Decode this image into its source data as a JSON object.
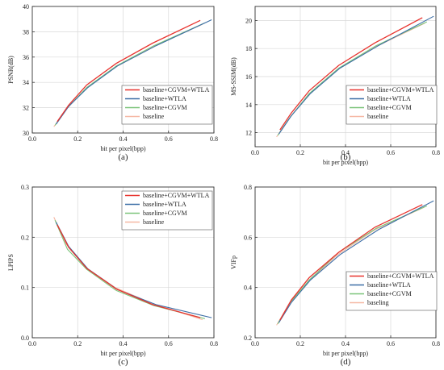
{
  "figure": {
    "colors": {
      "wtla": "#e8332e",
      "wtla_only": "#3c6ea6",
      "cgvm": "#7cc47a",
      "base": "#f6b8a4"
    }
  },
  "chart_data": [
    {
      "type": "line",
      "caption": "(a)",
      "xlabel": "bit per pixel(bpp)",
      "ylabel": "PSNR(dB)",
      "xlim": [
        0,
        0.8
      ],
      "ylim": [
        30,
        40
      ],
      "xticks": [
        "0.0",
        "0.2",
        "0.4",
        "0.6",
        "0.8"
      ],
      "yticks": [
        "30",
        "32",
        "34",
        "36",
        "38",
        "40"
      ],
      "grid": true,
      "legend_position": "bottom-right",
      "series": [
        {
          "name": "baseline+CGVM+WTLA",
          "color": "#e8332e",
          "x": [
            0.11,
            0.16,
            0.24,
            0.37,
            0.53,
            0.74
          ],
          "y": [
            30.9,
            32.2,
            33.8,
            35.5,
            37.1,
            38.9
          ]
        },
        {
          "name": "baseline+WTLA",
          "color": "#3c6ea6",
          "x": [
            0.105,
            0.16,
            0.245,
            0.375,
            0.545,
            0.79
          ],
          "y": [
            30.7,
            32.1,
            33.6,
            35.3,
            36.9,
            38.95
          ]
        },
        {
          "name": "baseline+CGVM",
          "color": "#7cc47a",
          "x": [
            0.1,
            0.155,
            0.24,
            0.37,
            0.535,
            0.76
          ],
          "y": [
            30.6,
            32.0,
            33.6,
            35.3,
            36.9,
            38.7
          ]
        },
        {
          "name": "baseline",
          "color": "#f6b8a4",
          "x": [
            0.095,
            0.15,
            0.235,
            0.365,
            0.53,
            0.75
          ],
          "y": [
            30.5,
            31.9,
            33.5,
            35.2,
            36.8,
            38.6
          ]
        }
      ]
    },
    {
      "type": "line",
      "caption": "(b)",
      "xlabel": "bit per pixel(bpp)",
      "ylabel": "MS-SSIM(dB)",
      "xlim": [
        0,
        0.8
      ],
      "ylim": [
        11,
        21
      ],
      "xticks": [
        "0.0",
        "0.2",
        "0.4",
        "0.6",
        "0.8"
      ],
      "yticks": [
        "12",
        "14",
        "16",
        "18",
        "20"
      ],
      "grid": true,
      "legend_position": "bottom-right",
      "series": [
        {
          "name": "baseline+CGVM+WTLA",
          "color": "#e8332e",
          "x": [
            0.11,
            0.16,
            0.24,
            0.37,
            0.53,
            0.74
          ],
          "y": [
            12.2,
            13.4,
            15.0,
            16.8,
            18.4,
            20.2
          ]
        },
        {
          "name": "baseline+WTLA",
          "color": "#3c6ea6",
          "x": [
            0.105,
            0.16,
            0.245,
            0.375,
            0.545,
            0.79
          ],
          "y": [
            11.9,
            13.2,
            14.8,
            16.6,
            18.2,
            20.3
          ]
        },
        {
          "name": "baseline+CGVM",
          "color": "#7cc47a",
          "x": [
            0.1,
            0.155,
            0.24,
            0.37,
            0.535,
            0.76
          ],
          "y": [
            11.8,
            13.1,
            14.8,
            16.6,
            18.2,
            19.9
          ]
        },
        {
          "name": "baseline",
          "color": "#f6b8a4",
          "x": [
            0.095,
            0.15,
            0.235,
            0.365,
            0.53,
            0.75
          ],
          "y": [
            11.7,
            13.0,
            14.7,
            16.5,
            18.1,
            19.8
          ]
        }
      ]
    },
    {
      "type": "line",
      "caption": "(c)",
      "xlabel": "bit per pixel(bpp)",
      "ylabel": "LPIPS",
      "xlim": [
        0,
        0.8
      ],
      "ylim": [
        0,
        0.3
      ],
      "xticks": [
        "0.0",
        "0.2",
        "0.4",
        "0.6",
        "0.8"
      ],
      "yticks": [
        "0.0",
        "0.1",
        "0.2",
        "0.3"
      ],
      "grid": true,
      "legend_position": "top-right",
      "series": [
        {
          "name": "baseline+CGVM+WTLA",
          "color": "#e8332e",
          "x": [
            0.11,
            0.16,
            0.24,
            0.37,
            0.53,
            0.74
          ],
          "y": [
            0.225,
            0.18,
            0.138,
            0.097,
            0.066,
            0.04
          ]
        },
        {
          "name": "baseline+WTLA",
          "color": "#3c6ea6",
          "x": [
            0.105,
            0.16,
            0.245,
            0.375,
            0.545,
            0.79
          ],
          "y": [
            0.23,
            0.182,
            0.137,
            0.096,
            0.066,
            0.04
          ]
        },
        {
          "name": "baseline+CGVM",
          "color": "#7cc47a",
          "x": [
            0.1,
            0.155,
            0.24,
            0.37,
            0.535,
            0.76
          ],
          "y": [
            0.234,
            0.176,
            0.136,
            0.094,
            0.064,
            0.038
          ]
        },
        {
          "name": "baseline",
          "color": "#f6b8a4",
          "x": [
            0.095,
            0.15,
            0.235,
            0.365,
            0.53,
            0.75
          ],
          "y": [
            0.24,
            0.186,
            0.14,
            0.1,
            0.068,
            0.036
          ]
        }
      ]
    },
    {
      "type": "line",
      "caption": "(d)",
      "xlabel": "bit per pixel(bpp)",
      "ylabel": "VIFp",
      "xlim": [
        0,
        0.8
      ],
      "ylim": [
        0.2,
        0.8
      ],
      "xticks": [
        "0.0",
        "0.2",
        "0.4",
        "0.6",
        "0.8"
      ],
      "yticks": [
        "0.2",
        "0.4",
        "0.6",
        "0.8"
      ],
      "grid": true,
      "legend_position": "bottom-right",
      "series": [
        {
          "name": "baseline+CGVM+WTLA",
          "color": "#e8332e",
          "x": [
            0.11,
            0.16,
            0.24,
            0.37,
            0.53,
            0.74
          ],
          "y": [
            0.27,
            0.35,
            0.44,
            0.54,
            0.64,
            0.73
          ]
        },
        {
          "name": "baseline+WTLA",
          "color": "#3c6ea6",
          "x": [
            0.105,
            0.16,
            0.245,
            0.375,
            0.545,
            0.79
          ],
          "y": [
            0.26,
            0.34,
            0.43,
            0.53,
            0.63,
            0.745
          ]
        },
        {
          "name": "baseline+CGVM",
          "color": "#7cc47a",
          "x": [
            0.1,
            0.155,
            0.24,
            0.37,
            0.535,
            0.76
          ],
          "y": [
            0.255,
            0.34,
            0.43,
            0.54,
            0.635,
            0.725
          ]
        },
        {
          "name": "baseling",
          "color": "#f6b8a4",
          "x": [
            0.095,
            0.15,
            0.235,
            0.365,
            0.53,
            0.75
          ],
          "y": [
            0.25,
            0.335,
            0.425,
            0.53,
            0.63,
            0.72
          ]
        }
      ]
    }
  ]
}
